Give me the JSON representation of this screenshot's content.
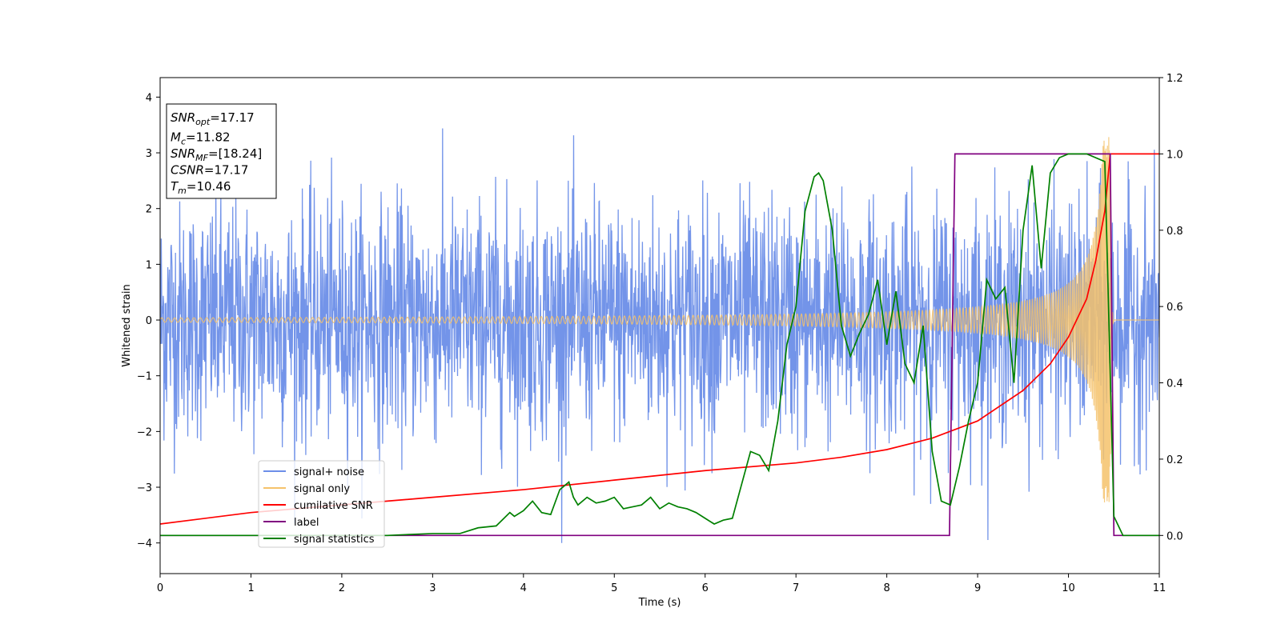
{
  "chart_data": {
    "type": "line",
    "xlabel": "Time (s)",
    "ylabel": "Whitened strain",
    "xlim": [
      0,
      11
    ],
    "ylim_left": [
      -4.55,
      4.35
    ],
    "ylim_right": [
      -0.1,
      1.2
    ],
    "xticks": [
      "0",
      "1",
      "2",
      "3",
      "4",
      "5",
      "6",
      "7",
      "8",
      "9",
      "10",
      "11"
    ],
    "yticks_left": [
      "4",
      "3",
      "2",
      "1",
      "0",
      "−1",
      "−2",
      "−3",
      "−4"
    ],
    "yticks_right": [
      "0.0",
      "0.2",
      "0.4",
      "0.6",
      "0.8",
      "1.0",
      "1.2"
    ],
    "grid": false,
    "legend_position": "lower-left",
    "info_box": [
      {
        "base": "SNR",
        "sub": "opt",
        "value": "=17.17"
      },
      {
        "base": "M",
        "sub": "c",
        "value": "=11.82"
      },
      {
        "base": "SNR",
        "sub": "MF",
        "value": "=[18.24]"
      },
      {
        "base": "CSNR",
        "sub": "",
        "value": "=17.17"
      },
      {
        "base": "T",
        "sub": "m",
        "value": "=10.46"
      }
    ],
    "series": [
      {
        "name": "signal+ noise",
        "color": "#6c8ee8",
        "axis": "left",
        "kind": "noise",
        "band_half_width": 1.05,
        "peak_abs_max": 4.0
      },
      {
        "name": "signal only",
        "color": "#f5c26b",
        "axis": "left",
        "kind": "chirp",
        "amplitude_start": 0.04,
        "amplitude_peak": 3.3,
        "merger_time": 10.46,
        "end_time": 10.5
      },
      {
        "name": "cumilative SNR",
        "color": "#ff0000",
        "axis": "right",
        "x": [
          0,
          1,
          2,
          3,
          4,
          5,
          6,
          7,
          7.5,
          8,
          8.5,
          9,
          9.5,
          9.8,
          10,
          10.2,
          10.3,
          10.4,
          10.46,
          11
        ],
        "y": [
          0.03,
          0.06,
          0.08,
          0.1,
          0.12,
          0.145,
          0.17,
          0.19,
          0.205,
          0.225,
          0.255,
          0.3,
          0.38,
          0.45,
          0.52,
          0.62,
          0.72,
          0.85,
          1.0,
          1.0
        ]
      },
      {
        "name": "label",
        "color": "#800080",
        "axis": "right",
        "x": [
          0,
          8.69,
          8.75,
          10.46,
          10.5,
          11
        ],
        "y": [
          0,
          0,
          1,
          1,
          0,
          0
        ]
      },
      {
        "name": "signal statistics",
        "color": "#008000",
        "axis": "right",
        "x": [
          0,
          0.5,
          1,
          1.5,
          2,
          2.5,
          3,
          3.3,
          3.5,
          3.7,
          3.85,
          3.9,
          4.0,
          4.1,
          4.2,
          4.3,
          4.4,
          4.5,
          4.55,
          4.6,
          4.7,
          4.8,
          4.9,
          5.0,
          5.1,
          5.2,
          5.3,
          5.4,
          5.5,
          5.6,
          5.7,
          5.8,
          5.9,
          6.0,
          6.1,
          6.2,
          6.3,
          6.5,
          6.6,
          6.7,
          6.8,
          6.9,
          7.0,
          7.1,
          7.2,
          7.25,
          7.3,
          7.4,
          7.5,
          7.6,
          7.7,
          7.8,
          7.9,
          8.0,
          8.1,
          8.2,
          8.3,
          8.4,
          8.5,
          8.6,
          8.7,
          8.8,
          8.9,
          9.0,
          9.1,
          9.2,
          9.3,
          9.4,
          9.5,
          9.6,
          9.7,
          9.8,
          9.9,
          10.0,
          10.2,
          10.4,
          10.5,
          10.6,
          11
        ],
        "y": [
          0.0,
          0.0,
          0.0,
          0.0,
          0.0,
          0.0,
          0.005,
          0.005,
          0.02,
          0.025,
          0.06,
          0.05,
          0.065,
          0.09,
          0.06,
          0.055,
          0.12,
          0.14,
          0.1,
          0.08,
          0.1,
          0.085,
          0.09,
          0.1,
          0.07,
          0.075,
          0.08,
          0.1,
          0.07,
          0.085,
          0.075,
          0.07,
          0.06,
          0.045,
          0.03,
          0.04,
          0.045,
          0.22,
          0.21,
          0.17,
          0.3,
          0.5,
          0.6,
          0.85,
          0.94,
          0.95,
          0.93,
          0.8,
          0.55,
          0.47,
          0.53,
          0.58,
          0.67,
          0.5,
          0.64,
          0.45,
          0.4,
          0.55,
          0.22,
          0.09,
          0.08,
          0.18,
          0.3,
          0.4,
          0.67,
          0.62,
          0.65,
          0.4,
          0.8,
          0.97,
          0.7,
          0.95,
          0.99,
          1.0,
          1.0,
          0.98,
          0.05,
          0.0,
          0.0
        ]
      }
    ]
  }
}
